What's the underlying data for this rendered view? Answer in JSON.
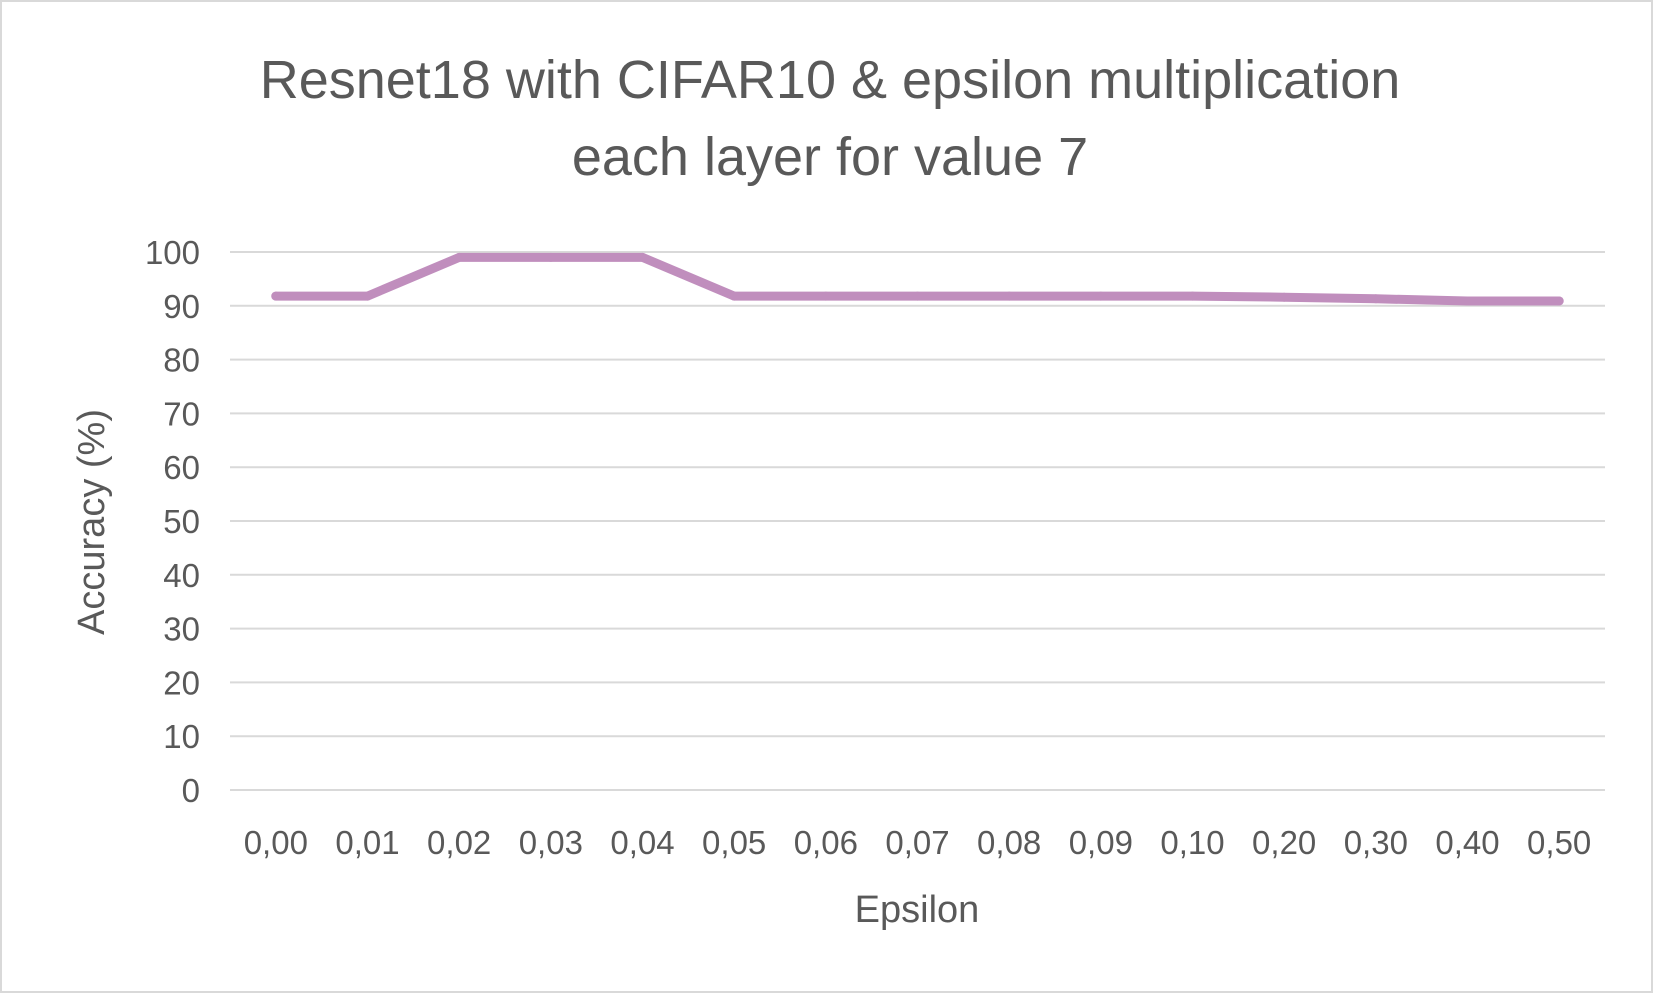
{
  "chart_data": {
    "type": "line",
    "title_lines": [
      "Resnet18 with CIFAR10 & epsilon multiplication",
      "each layer for value 7"
    ],
    "xlabel": "Epsilon",
    "ylabel": "Accuracy (%)",
    "categories": [
      "0,00",
      "0,01",
      "0,02",
      "0,03",
      "0,04",
      "0,05",
      "0,06",
      "0,07",
      "0,08",
      "0,09",
      "0,10",
      "0,20",
      "0,30",
      "0,40",
      "0,50"
    ],
    "y_ticks": [
      "0",
      "10",
      "20",
      "30",
      "40",
      "50",
      "60",
      "70",
      "80",
      "90",
      "100"
    ],
    "ylim": [
      0,
      100
    ],
    "grid": "horizontal",
    "legend": "none",
    "series": [
      {
        "color": "#c08ebd",
        "values": [
          91.8,
          91.8,
          99,
          99,
          99,
          91.8,
          91.8,
          91.8,
          91.8,
          91.8,
          91.8,
          91.6,
          91.3,
          90.9,
          90.9
        ]
      }
    ]
  }
}
